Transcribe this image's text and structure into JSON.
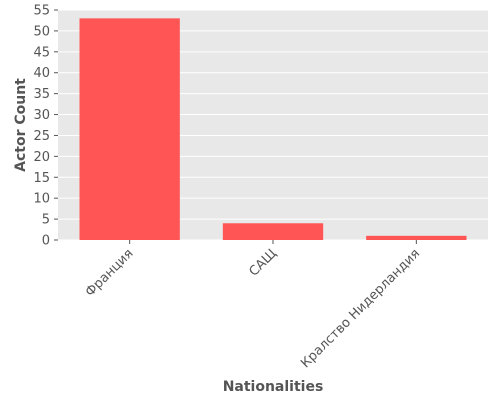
{
  "chart_data": {
    "type": "bar",
    "categories": [
      "Франция",
      "САЩ",
      "Кралство Нидерландия"
    ],
    "values": [
      53,
      4,
      1
    ],
    "title": "",
    "xlabel": "Nationalities",
    "ylabel": "Actor Count",
    "ylim": [
      0,
      55
    ],
    "yticks": [
      0,
      5,
      10,
      15,
      20,
      25,
      30,
      35,
      40,
      45,
      50,
      55
    ],
    "grid": true,
    "legend": "none",
    "bar_color": "#ff5555",
    "plot_background": "#e8e8e8",
    "grid_color": "#ffffff",
    "text_color": "#555555"
  }
}
